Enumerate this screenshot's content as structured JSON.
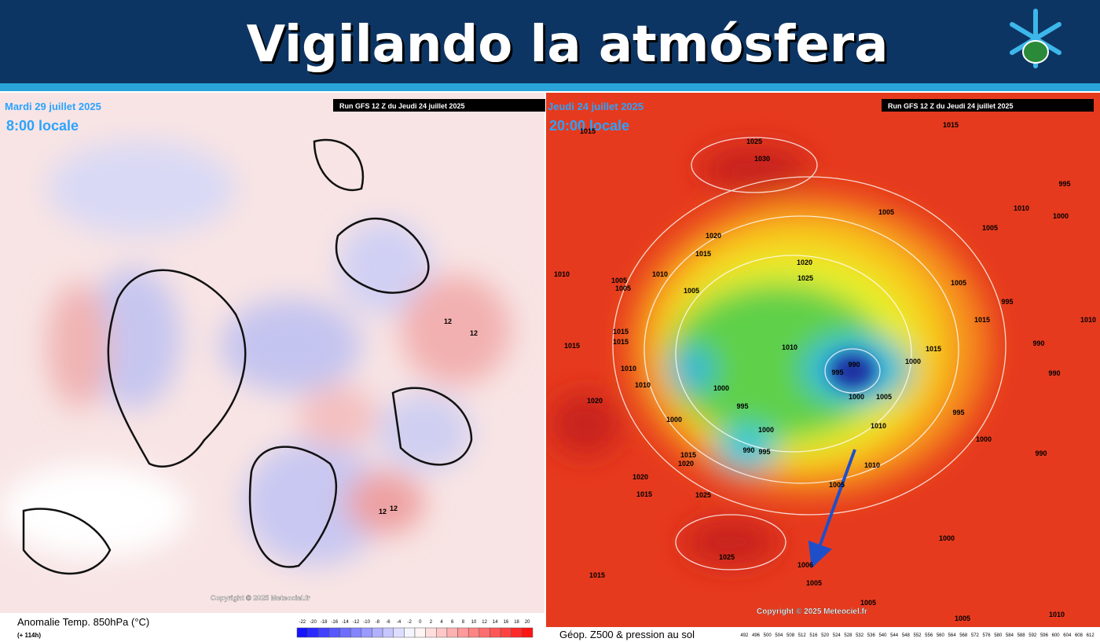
{
  "header": {
    "title": "Vigilando la atmósfera"
  },
  "left_map": {
    "date": "Mardi 29 juillet 2025",
    "time": "8:00 locale",
    "run": "Run GFS 12 Z du Jeudi 24 juillet 2025",
    "copyright": "Copyright © 2025 Meteociel.fr",
    "caption": "Anomalie Temp. 850hPa (°C)",
    "lead": "(+ 114h)",
    "scale": [
      -22,
      -20,
      -18,
      -16,
      -14,
      -12,
      -10,
      -8,
      -6,
      -4,
      -2,
      0,
      2,
      4,
      6,
      8,
      10,
      12,
      14,
      16,
      18,
      20
    ],
    "contour_labels": [
      "12",
      "12",
      "12",
      "12"
    ]
  },
  "right_map": {
    "date": "Jeudi 24 juillet 2025",
    "time": "20:00 locale",
    "run": "Run GFS 12 Z du Jeudi 24 juillet 2025",
    "copyright": "Copyright © 2025 Meteociel.fr",
    "caption": "Géop. Z500 & pression au sol",
    "scale": [
      492,
      496,
      500,
      504,
      508,
      512,
      516,
      520,
      524,
      528,
      532,
      536,
      540,
      544,
      548,
      552,
      556,
      560,
      564,
      568,
      572,
      576,
      580,
      584,
      588,
      592,
      596,
      600,
      604,
      608,
      612
    ],
    "isobar_labels": [
      "1015",
      "1025",
      "1030",
      "1015",
      "995",
      "1010",
      "1000",
      "1005",
      "1005",
      "1020",
      "1015",
      "1025",
      "1020",
      "1010",
      "1005",
      "1005",
      "1010",
      "1005",
      "1005",
      "995",
      "1015",
      "1010",
      "1015",
      "1015",
      "1015",
      "1010",
      "990",
      "995",
      "1000",
      "1015",
      "1010",
      "1010",
      "1000",
      "990",
      "990",
      "1000",
      "1005",
      "995",
      "995",
      "1020",
      "1000",
      "1000",
      "990",
      "995",
      "1010",
      "1015",
      "1020",
      "1020",
      "1015",
      "1025",
      "1005",
      "1010",
      "1000",
      "990",
      "1025",
      "1000",
      "1006",
      "1005",
      "1015",
      "1005",
      "1010",
      "1005"
    ]
  }
}
